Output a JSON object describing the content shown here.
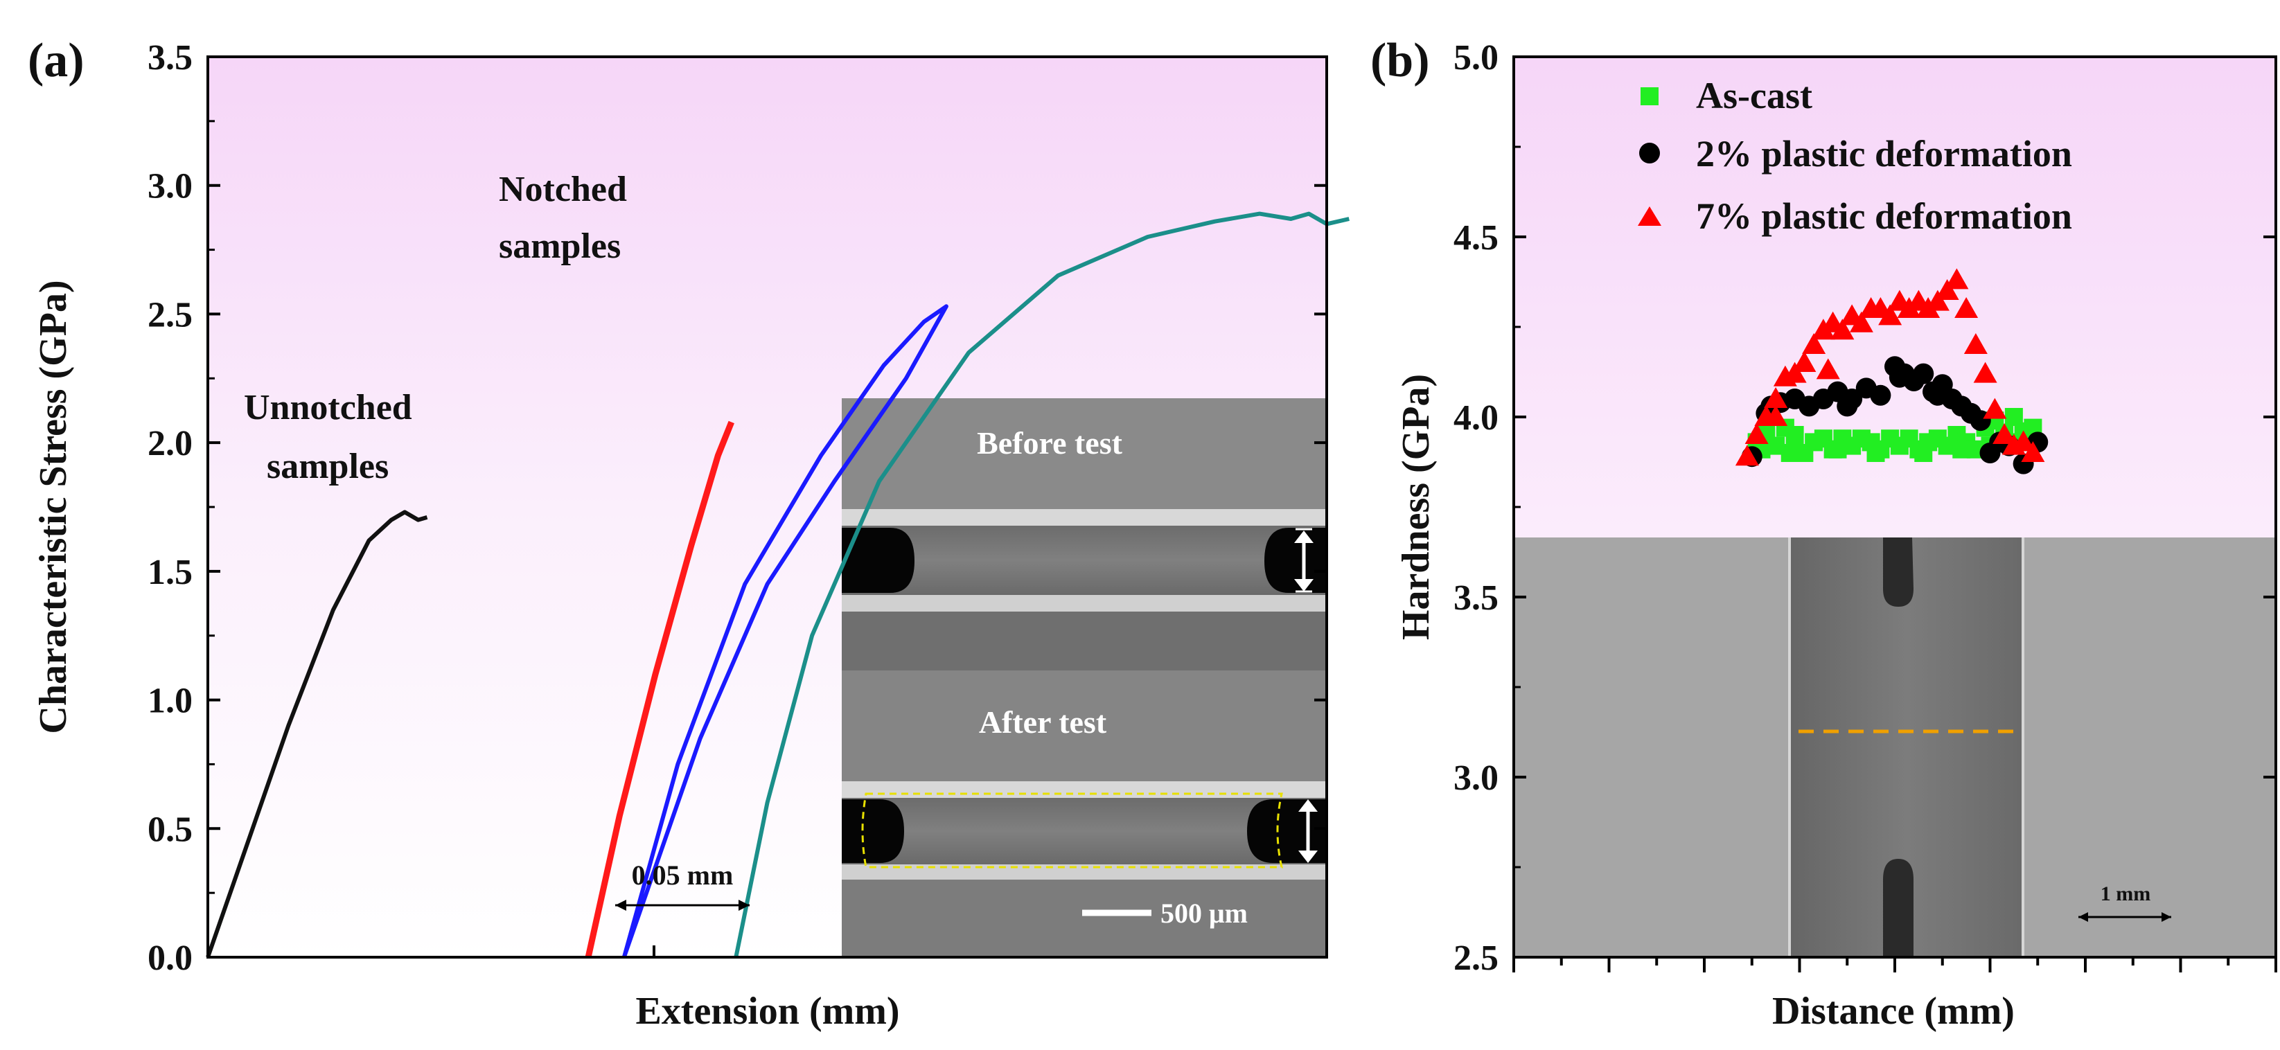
{
  "panels": {
    "a": {
      "label": "(a)"
    },
    "b": {
      "label": "(b)"
    }
  },
  "colors": {
    "unnotched": "#111111",
    "notched_red": "#ff1a1a",
    "notched_blue": "#1a1aff",
    "notched_teal": "#1b8f8a",
    "as_cast": "#22ee22",
    "two_pct": "#000000",
    "seven_pct": "#ff0000",
    "dash": "#f0a000"
  },
  "inset_a": {
    "before_label": "Before test",
    "after_label": "After test",
    "scale_label": "500 μm"
  },
  "inset_b": {
    "scale_label": "1 mm"
  },
  "chart_data": [
    {
      "type": "line",
      "title": "",
      "xlabel": "Extension (mm)",
      "ylabel": "Characteristic Stress (GPa)",
      "ylim": [
        0,
        3.5
      ],
      "yticks": [
        "0.0",
        "0.5",
        "1.0",
        "1.5",
        "2.0",
        "2.5",
        "3.0",
        "3.5"
      ],
      "xlim": [
        0,
        0.25
      ],
      "scale_bar_label": "0.05 mm",
      "annotations": [
        "Unnotched samples",
        "Notched samples"
      ],
      "series": [
        {
          "name": "Unnotched",
          "x": [
            0,
            0.008,
            0.018,
            0.028,
            0.036,
            0.041,
            0.044,
            0.047,
            0.049
          ],
          "y": [
            0,
            0.4,
            0.9,
            1.35,
            1.62,
            1.7,
            1.73,
            1.7,
            1.71
          ]
        },
        {
          "name": "Notched (red)",
          "x": [
            0.085,
            0.092,
            0.1,
            0.108,
            0.114,
            0.117
          ],
          "y": [
            0,
            0.55,
            1.1,
            1.6,
            1.95,
            2.08
          ]
        },
        {
          "name": "Notched (blue)",
          "x": [
            0.093,
            0.105,
            0.12,
            0.137,
            0.151,
            0.16,
            0.165,
            0.156,
            0.14,
            0.125,
            0.11,
            0.093
          ],
          "y": [
            0,
            0.75,
            1.45,
            1.95,
            2.3,
            2.47,
            2.53,
            2.25,
            1.85,
            1.45,
            0.85,
            0
          ]
        },
        {
          "name": "Notched (teal)",
          "x": [
            0.118,
            0.125,
            0.135,
            0.15,
            0.17,
            0.19,
            0.21,
            0.225,
            0.235,
            0.242,
            0.246,
            0.25,
            0.255
          ],
          "y": [
            0,
            0.6,
            1.25,
            1.85,
            2.35,
            2.65,
            2.8,
            2.86,
            2.89,
            2.87,
            2.89,
            2.85,
            2.87
          ]
        }
      ]
    },
    {
      "type": "scatter",
      "title": "",
      "xlabel": "Distance (mm)",
      "ylabel": "Hardness (GPa)",
      "ylim": [
        2.5,
        5.0
      ],
      "yticks": [
        "2.5",
        "3.0",
        "3.5",
        "4.0",
        "4.5",
        "5.0"
      ],
      "xlim": [
        -4,
        4
      ],
      "series": [
        {
          "name": "As-cast",
          "x": [
            -1.45,
            -1.35,
            -1.25,
            -1.15,
            -1.05,
            -0.95,
            -0.85,
            -0.75,
            -0.65,
            -0.55,
            -0.45,
            -0.35,
            -0.25,
            -0.15,
            -0.05,
            0.05,
            0.15,
            0.25,
            0.35,
            0.45,
            0.55,
            0.65,
            0.75,
            0.85,
            0.95,
            1.05,
            1.15,
            1.25,
            1.35,
            1.45,
            -1.4,
            -1.1,
            -0.6,
            -0.2,
            0.3,
            0.7,
            1.0,
            1.3
          ],
          "y": [
            3.93,
            3.95,
            3.92,
            3.97,
            3.95,
            3.9,
            3.93,
            3.94,
            3.91,
            3.94,
            3.92,
            3.94,
            3.93,
            3.91,
            3.94,
            3.92,
            3.94,
            3.91,
            3.93,
            3.94,
            3.92,
            3.95,
            3.93,
            3.91,
            3.97,
            3.99,
            3.95,
            4.0,
            3.96,
            3.97,
            3.91,
            3.9,
            3.91,
            3.9,
            3.9,
            3.91,
            3.92,
            3.93
          ]
        },
        {
          "name": "2% plastic deformation",
          "x": [
            -1.5,
            -1.35,
            -1.2,
            -1.05,
            -0.9,
            -0.75,
            -0.6,
            -0.45,
            -0.3,
            -0.15,
            0.0,
            0.1,
            0.2,
            0.3,
            0.4,
            0.5,
            0.6,
            0.7,
            0.8,
            0.9,
            1.0,
            1.1,
            1.2,
            1.35,
            1.5,
            -1.3,
            -0.5,
            0.05,
            0.45
          ],
          "y": [
            3.89,
            4.01,
            4.04,
            4.05,
            4.03,
            4.05,
            4.07,
            4.05,
            4.08,
            4.06,
            4.14,
            4.12,
            4.1,
            4.12,
            4.07,
            4.09,
            4.05,
            4.03,
            4.01,
            3.99,
            3.9,
            3.93,
            3.92,
            3.87,
            3.93,
            4.03,
            4.03,
            4.11,
            4.06
          ]
        },
        {
          "name": "7% plastic deformation",
          "x": [
            -1.55,
            -1.45,
            -1.35,
            -1.25,
            -1.15,
            -1.05,
            -0.95,
            -0.85,
            -0.75,
            -0.65,
            -0.55,
            -0.45,
            -0.35,
            -0.25,
            -0.15,
            -0.05,
            0.05,
            0.15,
            0.25,
            0.35,
            0.45,
            0.55,
            0.65,
            0.75,
            0.85,
            0.95,
            1.05,
            1.15,
            1.25,
            1.35,
            1.45,
            -1.25,
            -0.7
          ],
          "y": [
            3.89,
            3.95,
            4.0,
            4.05,
            4.11,
            4.12,
            4.15,
            4.2,
            4.24,
            4.26,
            4.24,
            4.28,
            4.26,
            4.3,
            4.3,
            4.28,
            4.32,
            4.3,
            4.32,
            4.3,
            4.32,
            4.35,
            4.38,
            4.3,
            4.2,
            4.12,
            4.02,
            3.95,
            3.92,
            3.93,
            3.9,
            4.0,
            4.13
          ]
        }
      ]
    }
  ]
}
